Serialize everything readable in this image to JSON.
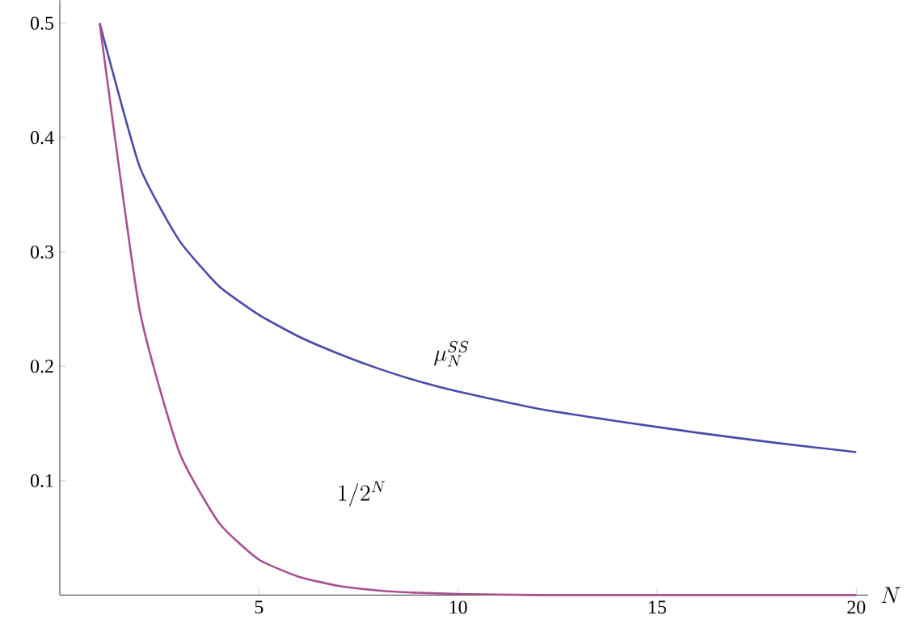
{
  "chart_data": {
    "type": "line",
    "xlabel": "N",
    "x": [
      1,
      2,
      3,
      4,
      5,
      6,
      7,
      8,
      9,
      10,
      12,
      14,
      16,
      18,
      20
    ],
    "series": [
      {
        "color": "#4b4ba8",
        "values": [
          0.5,
          0.375,
          0.31,
          0.27,
          0.245,
          0.226,
          0.211,
          0.198,
          0.187,
          0.178,
          0.163,
          0.152,
          0.142,
          0.133,
          0.125
        ]
      },
      {
        "color": "#a8508f",
        "values": [
          0.5,
          0.25,
          0.125,
          0.063,
          0.031,
          0.016,
          0.008,
          0.004,
          0.002,
          0.001,
          0,
          0,
          0,
          0,
          0
        ]
      }
    ],
    "xlim": [
      0,
      20.3
    ],
    "ylim": [
      0,
      0.52
    ],
    "xticks": [
      5,
      10,
      15,
      20
    ],
    "yticks": [
      0.1,
      0.2,
      0.3,
      0.4,
      0.5
    ],
    "annotations": [
      "\\mu_N^{SS}",
      "1/2^N"
    ],
    "grid": false
  }
}
